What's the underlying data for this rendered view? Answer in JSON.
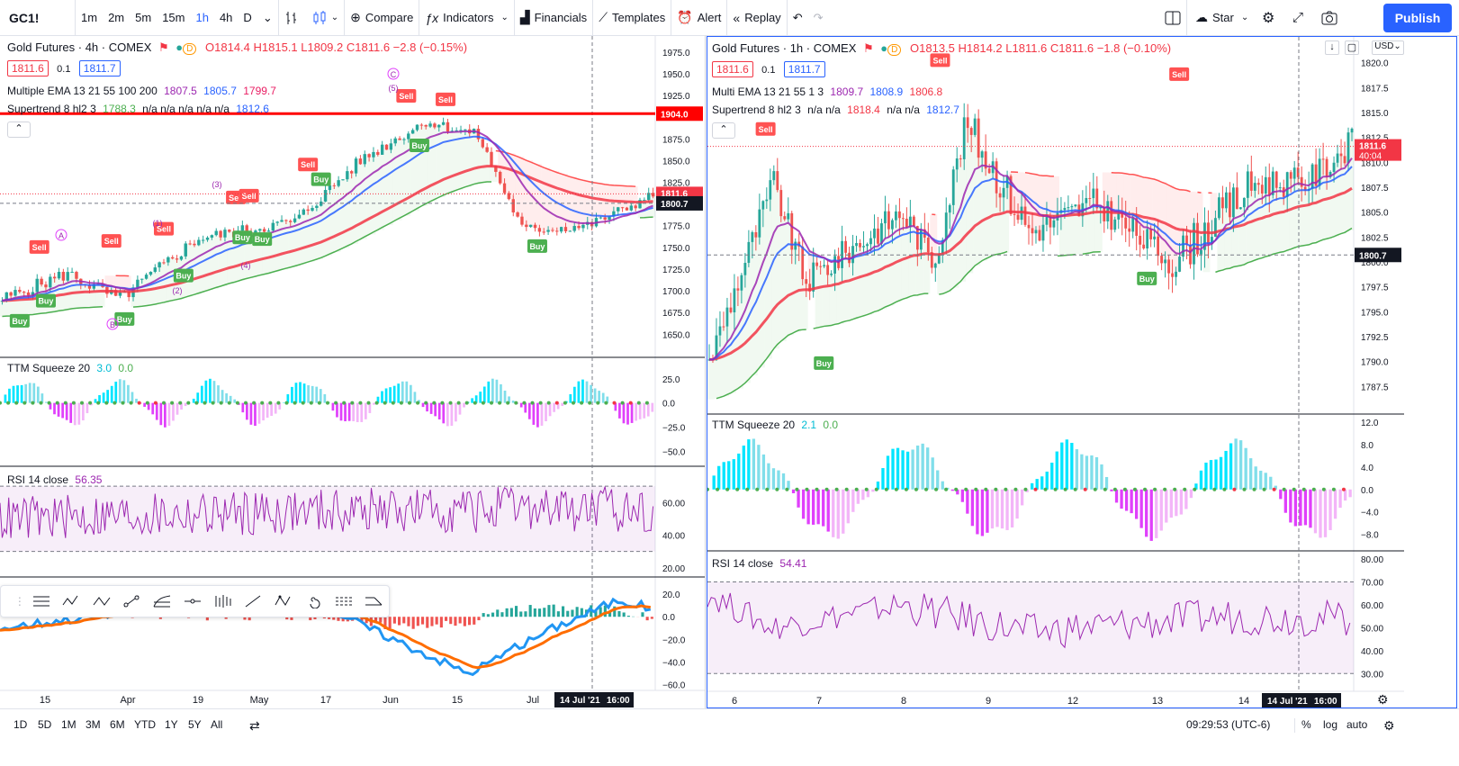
{
  "toolbar": {
    "symbol": "GC1!",
    "intervals": [
      "1m",
      "2m",
      "5m",
      "15m",
      "1h",
      "4h",
      "D"
    ],
    "compare": "Compare",
    "indicators": "Indicators",
    "financials": "Financials",
    "templates": "Templates",
    "alert": "Alert",
    "replay": "Replay",
    "star": "Star",
    "publish": "Publish"
  },
  "left": {
    "title": "Gold Futures · 4h · COMEX",
    "ohlc": "O1814.4 H1815.1 L1809.2 C1811.6 −2.8 (−0.15%)",
    "bid": "1811.6",
    "spread": "0.1",
    "ask": "1811.7",
    "ema": {
      "name": "Multiple EMA 13 21 55 100 200",
      "v1": "1807.5",
      "v2": "1805.7",
      "v3": "1799.7"
    },
    "st": {
      "name": "Supertrend 8 hl2 3",
      "v1": "1788.3",
      "v2": "n/a n/a n/a n/a n/a",
      "v3": "1812.6"
    },
    "ttm": {
      "name": "TTM Squeeze 20",
      "v1": "3.0",
      "v2": "0.0"
    },
    "rsi": {
      "name": "RSI 14 close",
      "v1": "56.35"
    },
    "price_axis": [
      "1975.0",
      "1950.0",
      "1925.0",
      "1900.0",
      "1875.0",
      "1850.0",
      "1825.0",
      "1800.0",
      "1775.0",
      "1750.0",
      "1725.0",
      "1700.0",
      "1675.0",
      "1650.0"
    ],
    "ttm_axis": [
      "25.0",
      "0.0",
      "−25.0",
      "−50.0"
    ],
    "rsi_axis": [
      "60.00",
      "40.00",
      "20.00"
    ],
    "macd_axis": [
      "20.0",
      "0.0",
      "−20.0",
      "−40.0",
      "−60.0"
    ],
    "time_axis": [
      "15",
      "Apr",
      "19",
      "May",
      "17",
      "Jun",
      "15",
      "Jul"
    ],
    "time_label": "14 Jul '21",
    "time_label2": "16:00",
    "line_label": "1904.0",
    "price_label": "1811.6",
    "cross_label": "1800.7",
    "signals": {
      "sell": "Sell",
      "buy": "Buy"
    },
    "waves": [
      "A",
      "B",
      "C",
      "(1)",
      "(2)",
      "(3)",
      "(4)",
      "(5)"
    ]
  },
  "right": {
    "title": "Gold Futures · 1h · COMEX",
    "ohlc": "O1813.5 H1814.2 L1811.6 C1811.6 −1.8 (−0.10%)",
    "bid": "1811.6",
    "spread": "0.1",
    "ask": "1811.7",
    "ema": {
      "name": "Multi EMA 13 21 55 1 3",
      "v1": "1809.7",
      "v2": "1808.9",
      "v3": "1806.8"
    },
    "st": {
      "name": "Supertrend 8 hl2 3",
      "v1": "n/a n/a",
      "v2": "1818.4",
      "v3": "n/a n/a",
      "v4": "1812.7"
    },
    "ttm": {
      "name": "TTM Squeeze 20",
      "v1": "2.1",
      "v2": "0.0"
    },
    "rsi": {
      "name": "RSI 14 close",
      "v1": "54.41"
    },
    "currency": "USD",
    "price_axis": [
      "1820.0",
      "1817.5",
      "1815.0",
      "1812.5",
      "1810.0",
      "1807.5",
      "1805.0",
      "1802.5",
      "1800.0",
      "1797.5",
      "1795.0",
      "1792.5",
      "1790.0",
      "1787.5"
    ],
    "ttm_axis": [
      "12.0",
      "8.0",
      "4.0",
      "0.0",
      "−4.0",
      "−8.0"
    ],
    "rsi_axis": [
      "80.00",
      "70.00",
      "60.00",
      "50.00",
      "40.00",
      "30.00"
    ],
    "time_axis": [
      "6",
      "7",
      "8",
      "9",
      "12",
      "13",
      "14"
    ],
    "time_label": "14 Jul '21",
    "time_label2": "16:00",
    "price_label": "1811.6",
    "price_label2": "40:04",
    "cross_label": "1800.7"
  },
  "bottom": {
    "ranges": [
      "1D",
      "5D",
      "1M",
      "3M",
      "6M",
      "YTD",
      "1Y",
      "5Y",
      "All"
    ],
    "clock": "09:29:53 (UTC-6)",
    "pct": "%",
    "log": "log",
    "auto": "auto"
  },
  "colors": {
    "up": "#26a69a",
    "down": "#ef5350",
    "accent": "#2962ff",
    "supertrend_up": "#4caf50",
    "supertrend_down": "#ff5252",
    "rsi": "#9c27b0"
  }
}
